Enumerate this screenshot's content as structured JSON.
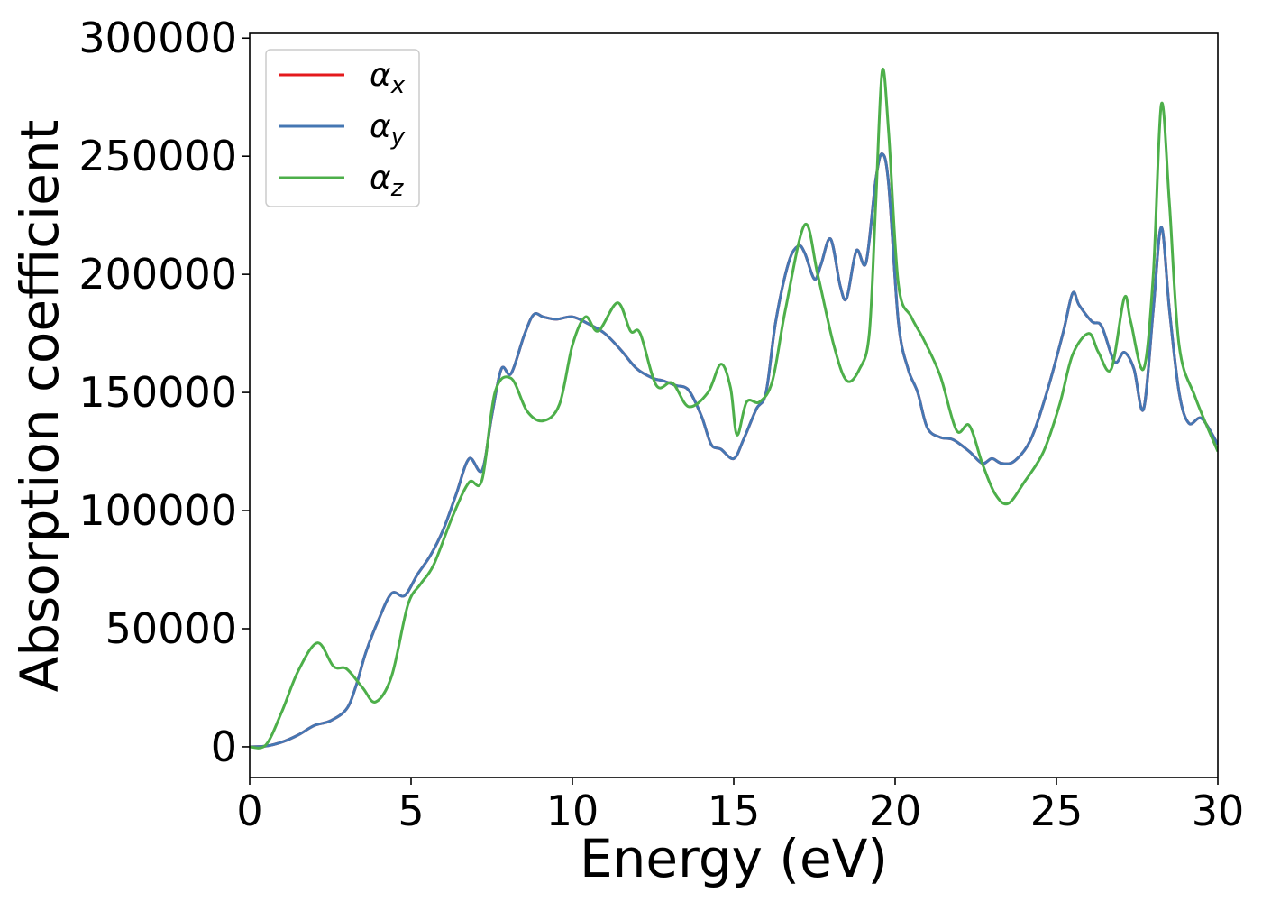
{
  "chart_data": {
    "type": "line",
    "title": "",
    "xlabel": "Energy (eV)",
    "ylabel": "Absorption coefficient",
    "xlim": [
      0,
      30
    ],
    "ylim": [
      -13000,
      302000
    ],
    "grid": false,
    "legend_position": "top-left",
    "x_ticks": [
      0,
      5,
      10,
      15,
      20,
      25,
      30
    ],
    "x_tick_labels": [
      "0",
      "5",
      "10",
      "15",
      "20",
      "25",
      "30"
    ],
    "y_ticks": [
      0,
      50000,
      100000,
      150000,
      200000,
      250000,
      300000
    ],
    "y_tick_labels": [
      "0",
      "50000",
      "100000",
      "150000",
      "200000",
      "250000",
      "300000"
    ],
    "series": [
      {
        "name": "αx",
        "symbol": "α",
        "subscript": "x",
        "color": "#e41a1c",
        "x": [
          0,
          0.5,
          1,
          1.5,
          2,
          2.5,
          3,
          3.3,
          3.6,
          4,
          4.4,
          4.8,
          5.2,
          5.6,
          6,
          6.4,
          6.8,
          7.2,
          7.5,
          7.8,
          8.1,
          8.5,
          8.8,
          9.1,
          9.5,
          10,
          10.5,
          11,
          11.5,
          12,
          12.5,
          12.8,
          13.2,
          13.6,
          14,
          14.3,
          14.6,
          15,
          15.3,
          15.7,
          16,
          16.3,
          16.7,
          17,
          17.2,
          17.5,
          17.7,
          18,
          18.3,
          18.5,
          18.8,
          19.1,
          19.4,
          19.6,
          19.8,
          20.1,
          20.4,
          20.7,
          21,
          21.4,
          21.8,
          22.3,
          22.7,
          23,
          23.3,
          23.7,
          24.2,
          24.7,
          25.2,
          25.5,
          25.7,
          26.1,
          26.4,
          26.8,
          27.1,
          27.4,
          27.7,
          28,
          28.25,
          28.5,
          28.8,
          29.1,
          29.5,
          30
        ],
        "values": [
          0,
          300,
          2000,
          5000,
          9000,
          11000,
          16000,
          26000,
          40000,
          54000,
          65000,
          64000,
          73000,
          81000,
          92000,
          107000,
          122000,
          117000,
          140000,
          160000,
          158000,
          174000,
          183000,
          182000,
          181000,
          182000,
          179000,
          175000,
          168000,
          160000,
          156000,
          155000,
          153000,
          151000,
          140000,
          128000,
          126000,
          122000,
          130000,
          143000,
          150000,
          180000,
          205000,
          212000,
          209000,
          198000,
          204000,
          215000,
          195000,
          190000,
          210000,
          205000,
          240000,
          251000,
          238000,
          180000,
          160000,
          150000,
          135000,
          131000,
          130000,
          125000,
          120000,
          122000,
          120000,
          121000,
          130000,
          150000,
          175000,
          192000,
          187000,
          180000,
          178000,
          163000,
          167000,
          160000,
          143000,
          185000,
          220000,
          185000,
          150000,
          137000,
          139000,
          128000
        ]
      },
      {
        "name": "αy",
        "symbol": "α",
        "subscript": "y",
        "color": "#4577b3",
        "x": [
          0,
          0.5,
          1,
          1.5,
          2,
          2.5,
          3,
          3.3,
          3.6,
          4,
          4.4,
          4.8,
          5.2,
          5.6,
          6,
          6.4,
          6.8,
          7.2,
          7.5,
          7.8,
          8.1,
          8.5,
          8.8,
          9.1,
          9.5,
          10,
          10.5,
          11,
          11.5,
          12,
          12.5,
          12.8,
          13.2,
          13.6,
          14,
          14.3,
          14.6,
          15,
          15.3,
          15.7,
          16,
          16.3,
          16.7,
          17,
          17.2,
          17.5,
          17.7,
          18,
          18.3,
          18.5,
          18.8,
          19.1,
          19.4,
          19.6,
          19.8,
          20.1,
          20.4,
          20.7,
          21,
          21.4,
          21.8,
          22.3,
          22.7,
          23,
          23.3,
          23.7,
          24.2,
          24.7,
          25.2,
          25.5,
          25.7,
          26.1,
          26.4,
          26.8,
          27.1,
          27.4,
          27.7,
          28,
          28.25,
          28.5,
          28.8,
          29.1,
          29.5,
          30
        ],
        "values": [
          0,
          300,
          2000,
          5000,
          9000,
          11000,
          16000,
          26000,
          40000,
          54000,
          65000,
          64000,
          73000,
          81000,
          92000,
          107000,
          122000,
          117000,
          140000,
          160000,
          158000,
          174000,
          183000,
          182000,
          181000,
          182000,
          179000,
          175000,
          168000,
          160000,
          156000,
          155000,
          153000,
          151000,
          140000,
          128000,
          126000,
          122000,
          130000,
          143000,
          150000,
          180000,
          205000,
          212000,
          209000,
          198000,
          204000,
          215000,
          195000,
          190000,
          210000,
          205000,
          240000,
          251000,
          238000,
          180000,
          160000,
          150000,
          135000,
          131000,
          130000,
          125000,
          120000,
          122000,
          120000,
          121000,
          130000,
          150000,
          175000,
          192000,
          187000,
          180000,
          178000,
          163000,
          167000,
          160000,
          143000,
          185000,
          220000,
          185000,
          150000,
          137000,
          139000,
          128000
        ]
      },
      {
        "name": "αz",
        "symbol": "α",
        "subscript": "z",
        "color": "#4daf4a",
        "x": [
          0,
          0.5,
          1,
          1.5,
          2.1,
          2.6,
          3,
          3.5,
          3.9,
          4.4,
          4.9,
          5.3,
          5.7,
          6.3,
          6.8,
          7.2,
          7.6,
          8.1,
          8.6,
          9.1,
          9.6,
          10,
          10.4,
          10.8,
          11.4,
          11.8,
          12.1,
          12.6,
          13.1,
          13.6,
          14.2,
          14.6,
          14.9,
          15.1,
          15.4,
          15.8,
          16.2,
          16.6,
          17.2,
          17.6,
          18.1,
          18.5,
          18.9,
          19.2,
          19.4,
          19.6,
          19.8,
          20.1,
          20.5,
          20.9,
          21.4,
          21.9,
          22.3,
          22.7,
          23.1,
          23.5,
          24,
          24.6,
          25.1,
          25.5,
          26,
          26.3,
          26.7,
          27.1,
          27.3,
          27.7,
          28,
          28.25,
          28.5,
          28.8,
          29.3,
          30
        ],
        "values": [
          0,
          800,
          15000,
          32000,
          44000,
          34000,
          33000,
          25000,
          19000,
          30000,
          60000,
          69000,
          77000,
          98000,
          112000,
          113000,
          150000,
          156000,
          142000,
          138000,
          145000,
          170000,
          182000,
          176000,
          188000,
          176000,
          175000,
          153000,
          154000,
          144000,
          150000,
          162000,
          152000,
          132000,
          146000,
          146000,
          155000,
          185000,
          221000,
          200000,
          170000,
          155000,
          160000,
          175000,
          230000,
          286000,
          260000,
          196000,
          182000,
          172000,
          157000,
          134000,
          136000,
          120000,
          107000,
          103000,
          112000,
          125000,
          145000,
          166000,
          175000,
          167000,
          160000,
          190000,
          180000,
          160000,
          200000,
          272000,
          230000,
          170000,
          148000,
          125000
        ]
      }
    ]
  }
}
